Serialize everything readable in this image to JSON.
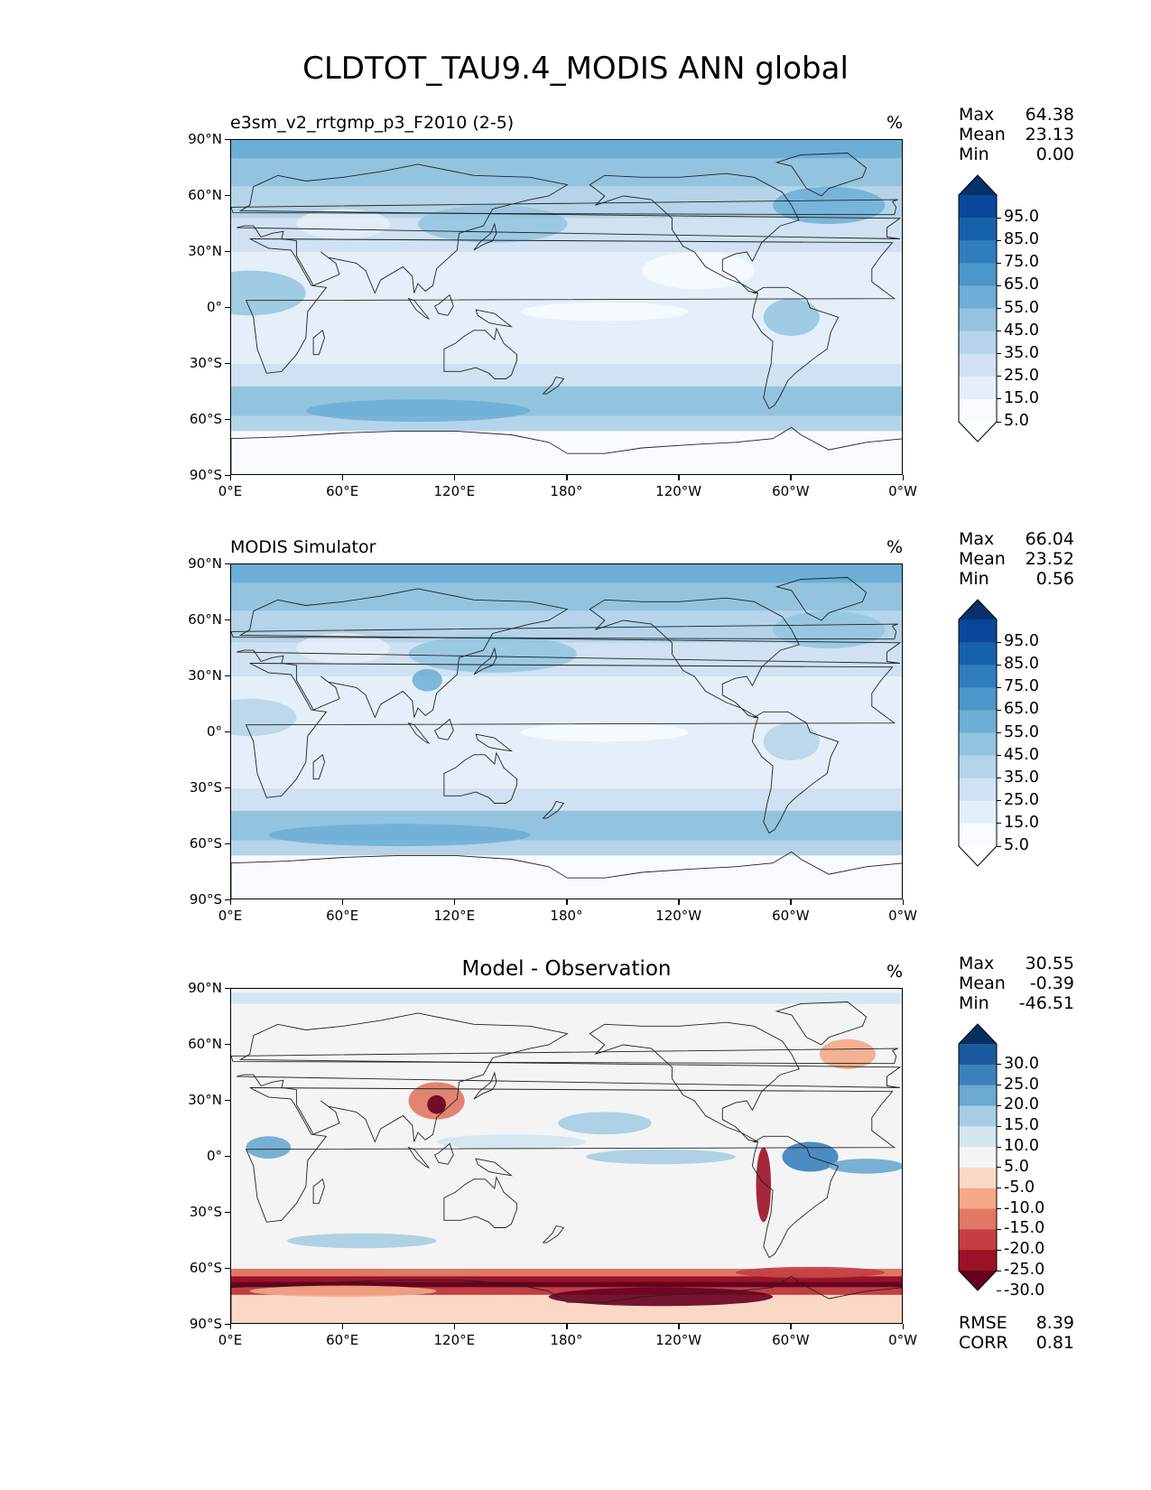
{
  "title": "CLDTOT_TAU9.4_MODIS ANN global",
  "lon_ticks": [
    "0°E",
    "60°E",
    "120°E",
    "180°",
    "120°W",
    "60°W",
    "0°W"
  ],
  "lat_ticks": [
    "90°N",
    "60°N",
    "30°N",
    "0°",
    "30°S",
    "60°S",
    "90°S"
  ],
  "panels": [
    {
      "title": "e3sm_v2_rrtgmp_p3_F2010 (2-5)",
      "unit": "%",
      "stats": [
        {
          "label": "Max",
          "value": "64.38"
        },
        {
          "label": "Mean",
          "value": "23.13"
        },
        {
          "label": "Min",
          "value": "0.00"
        }
      ],
      "colorbar": {
        "labels": [
          "95.0",
          "85.0",
          "75.0",
          "65.0",
          "55.0",
          "45.0",
          "35.0",
          "25.0",
          "15.0",
          "5.0"
        ],
        "colors": [
          "#08306b",
          "#08479a",
          "#1663ac",
          "#2f7dbd",
          "#4a97c9",
          "#6caed6",
          "#93c4df",
          "#b5d4e9",
          "#cfe1f2",
          "#e5eff9",
          "#f7fbff",
          "#ffffff"
        ]
      }
    },
    {
      "title": "MODIS Simulator",
      "unit": "%",
      "stats": [
        {
          "label": "Max",
          "value": "66.04"
        },
        {
          "label": "Mean",
          "value": "23.52"
        },
        {
          "label": "Min",
          "value": "0.56"
        }
      ],
      "colorbar": {
        "labels": [
          "95.0",
          "85.0",
          "75.0",
          "65.0",
          "55.0",
          "45.0",
          "35.0",
          "25.0",
          "15.0",
          "5.0"
        ],
        "colors": [
          "#08306b",
          "#08479a",
          "#1663ac",
          "#2f7dbd",
          "#4a97c9",
          "#6caed6",
          "#93c4df",
          "#b5d4e9",
          "#cfe1f2",
          "#e5eff9",
          "#f7fbff",
          "#ffffff"
        ]
      }
    },
    {
      "title": "Model - Observation",
      "unit": "%",
      "stats": [
        {
          "label": "Max",
          "value": "30.55"
        },
        {
          "label": "Mean",
          "value": "-0.39"
        },
        {
          "label": "Min",
          "value": "-46.51"
        }
      ],
      "extra_stats": [
        {
          "label": "RMSE",
          "value": "8.39"
        },
        {
          "label": "CORR",
          "value": "0.81"
        }
      ],
      "colorbar": {
        "labels": [
          "30.0",
          "25.0",
          "20.0",
          "15.0",
          "10.0",
          "5.0",
          "-5.0",
          "-10.0",
          "-15.0",
          "-20.0",
          "-25.0",
          "-30.0"
        ],
        "colors": [
          "#053061",
          "#1b5a9c",
          "#3a80bb",
          "#6aa9d0",
          "#a6cde3",
          "#d4e6f1",
          "#f4f4f4",
          "#fbd8c6",
          "#f4a988",
          "#e07864",
          "#c43e42",
          "#9b1227",
          "#67001f"
        ]
      }
    }
  ]
}
